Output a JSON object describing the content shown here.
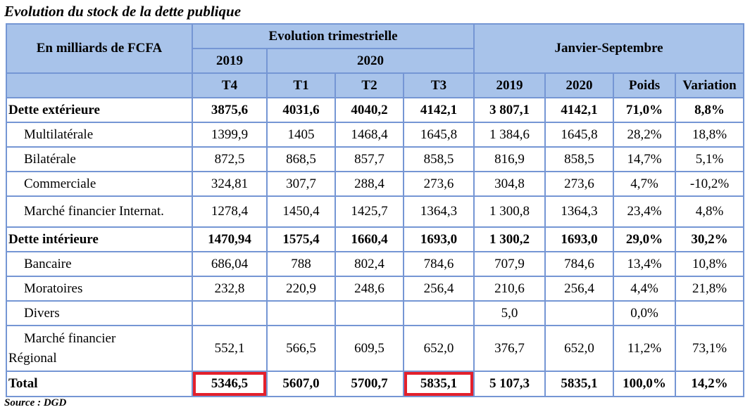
{
  "title": "Evolution du stock de la dette publique",
  "table": {
    "header": {
      "unit_label": "En milliards de FCFA",
      "group_quarterly": "Evolution trimestrielle",
      "group_period": "Janvier-Septembre",
      "years": [
        "2019",
        "2020"
      ],
      "columns": [
        "T4",
        "T1",
        "T2",
        "T3",
        "2019",
        "2020",
        "Poids",
        "Variation"
      ]
    },
    "rows": [
      {
        "label": "Dette extérieure",
        "cells": [
          "3875,6",
          "4031,6",
          "4040,2",
          "4142,1",
          "3 807,1",
          "4142,1",
          "71,0%",
          "8,8%"
        ]
      },
      {
        "label": "Multilatérale",
        "cells": [
          "1399,9",
          "1405",
          "1468,4",
          "1645,8",
          "1 384,6",
          "1645,8",
          "28,2%",
          "18,8%"
        ]
      },
      {
        "label": "Bilatérale",
        "cells": [
          "872,5",
          "868,5",
          "857,7",
          "858,5",
          "816,9",
          "858,5",
          "14,7%",
          "5,1%"
        ]
      },
      {
        "label": "Commerciale",
        "cells": [
          "324,81",
          "307,7",
          "288,4",
          "273,6",
          "304,8",
          "273,6",
          "4,7%",
          "-10,2%"
        ]
      },
      {
        "label": "Marché financier Internat.",
        "cells": [
          "1278,4",
          "1450,4",
          "1425,7",
          "1364,3",
          "1 300,8",
          "1364,3",
          "23,4%",
          "4,8%"
        ]
      },
      {
        "label": "Dette intérieure",
        "cells": [
          "1470,94",
          "1575,4",
          "1660,4",
          "1693,0",
          "1 300,2",
          "1693,0",
          "29,0%",
          "30,2%"
        ]
      },
      {
        "label": "Bancaire",
        "cells": [
          "686,04",
          "788",
          "802,4",
          "784,6",
          "707,9",
          "784,6",
          "13,4%",
          "10,8%"
        ]
      },
      {
        "label": "Moratoires",
        "cells": [
          "232,8",
          "220,9",
          "248,6",
          "256,4",
          "210,6",
          "256,4",
          "4,4%",
          "21,8%"
        ]
      },
      {
        "label": "Divers",
        "cells": [
          null,
          null,
          null,
          null,
          "5,0",
          null,
          "0,0%",
          null
        ]
      },
      {
        "label": "Marché financier\nRégional",
        "cells": [
          "552,1",
          "566,5",
          "609,5",
          "652,0",
          "376,7",
          "652,0",
          "11,2%",
          "73,1%"
        ]
      },
      {
        "label": "Total",
        "cells": [
          "5346,5",
          "5607,0",
          "5700,7",
          "5835,1",
          "5 107,3",
          "5835,1",
          "100,0%",
          "14,2%"
        ]
      }
    ]
  },
  "source": "Source : DGD"
}
